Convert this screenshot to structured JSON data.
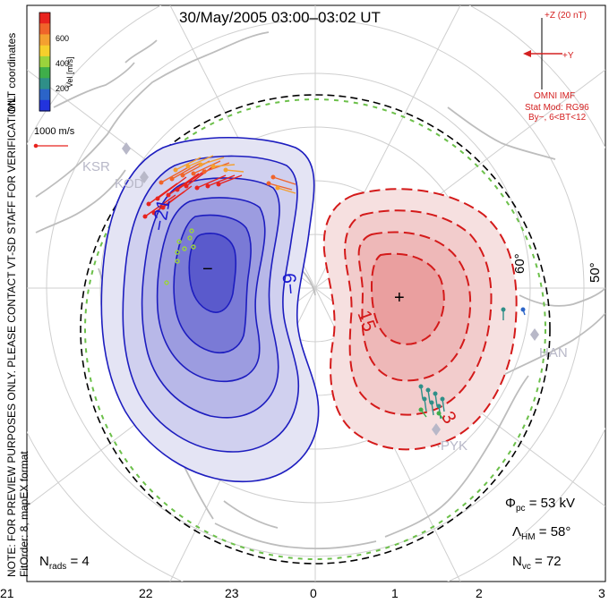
{
  "title": "30/May/2005 03:00–03:02 UT",
  "coordinates": "MLT coordinates",
  "verification_note": "NOTE: FOR PREVIEW PURPOSES ONLY. PLEASE CONTACT VT-SD STAFF FOR VERIFICATION.",
  "fit_note": "FitOrder: 8, mapEX format",
  "colorbar": {
    "label": "Vel [m/s]",
    "ticks": [
      "600",
      "400",
      "200"
    ],
    "colors": [
      "#e8231e",
      "#f0642a",
      "#f4a030",
      "#f6cf2c",
      "#9bd33c",
      "#3fae4a",
      "#2f8f88",
      "#2b64c8",
      "#2233dd"
    ]
  },
  "scale_vector": {
    "label": "1000 m/s"
  },
  "imf": {
    "z_label": "+Z (20 nT)",
    "y_label": "+Y",
    "source": "OMNI IMF",
    "model_line1": "Stat Mod: RG96",
    "model_line2": "By−, 6<BT<12"
  },
  "stats": {
    "phi_label": "Φ",
    "phi_sub": "pc",
    "phi_value": "= 53 kV",
    "lambda_label": "Λ",
    "lambda_sub": "HM",
    "lambda_value": "= 58°",
    "nvc_label": "N",
    "nvc_sub": "vc",
    "nvc_value": "= 72",
    "nrads_label": "N",
    "nrads_sub": "rads",
    "nrads_value": "= 4"
  },
  "mlt_ticks": [
    "21",
    "22",
    "23",
    "0",
    "1",
    "2",
    "3"
  ],
  "latitude_labels": [
    "60°",
    "50°"
  ],
  "contour_labels": [
    "−21",
    "−9",
    "15",
    "3"
  ],
  "extremum_markers": [
    "−",
    "+"
  ],
  "radars": [
    "KSR",
    "KOD",
    "HAN",
    "PYK"
  ],
  "colors": {
    "negative_cell": "#1a1ad0",
    "positive_cell": "#d41a1a",
    "hmb": "#6cc04a",
    "grid": "#c8c8c8",
    "coast": "#bdbdbd"
  }
}
